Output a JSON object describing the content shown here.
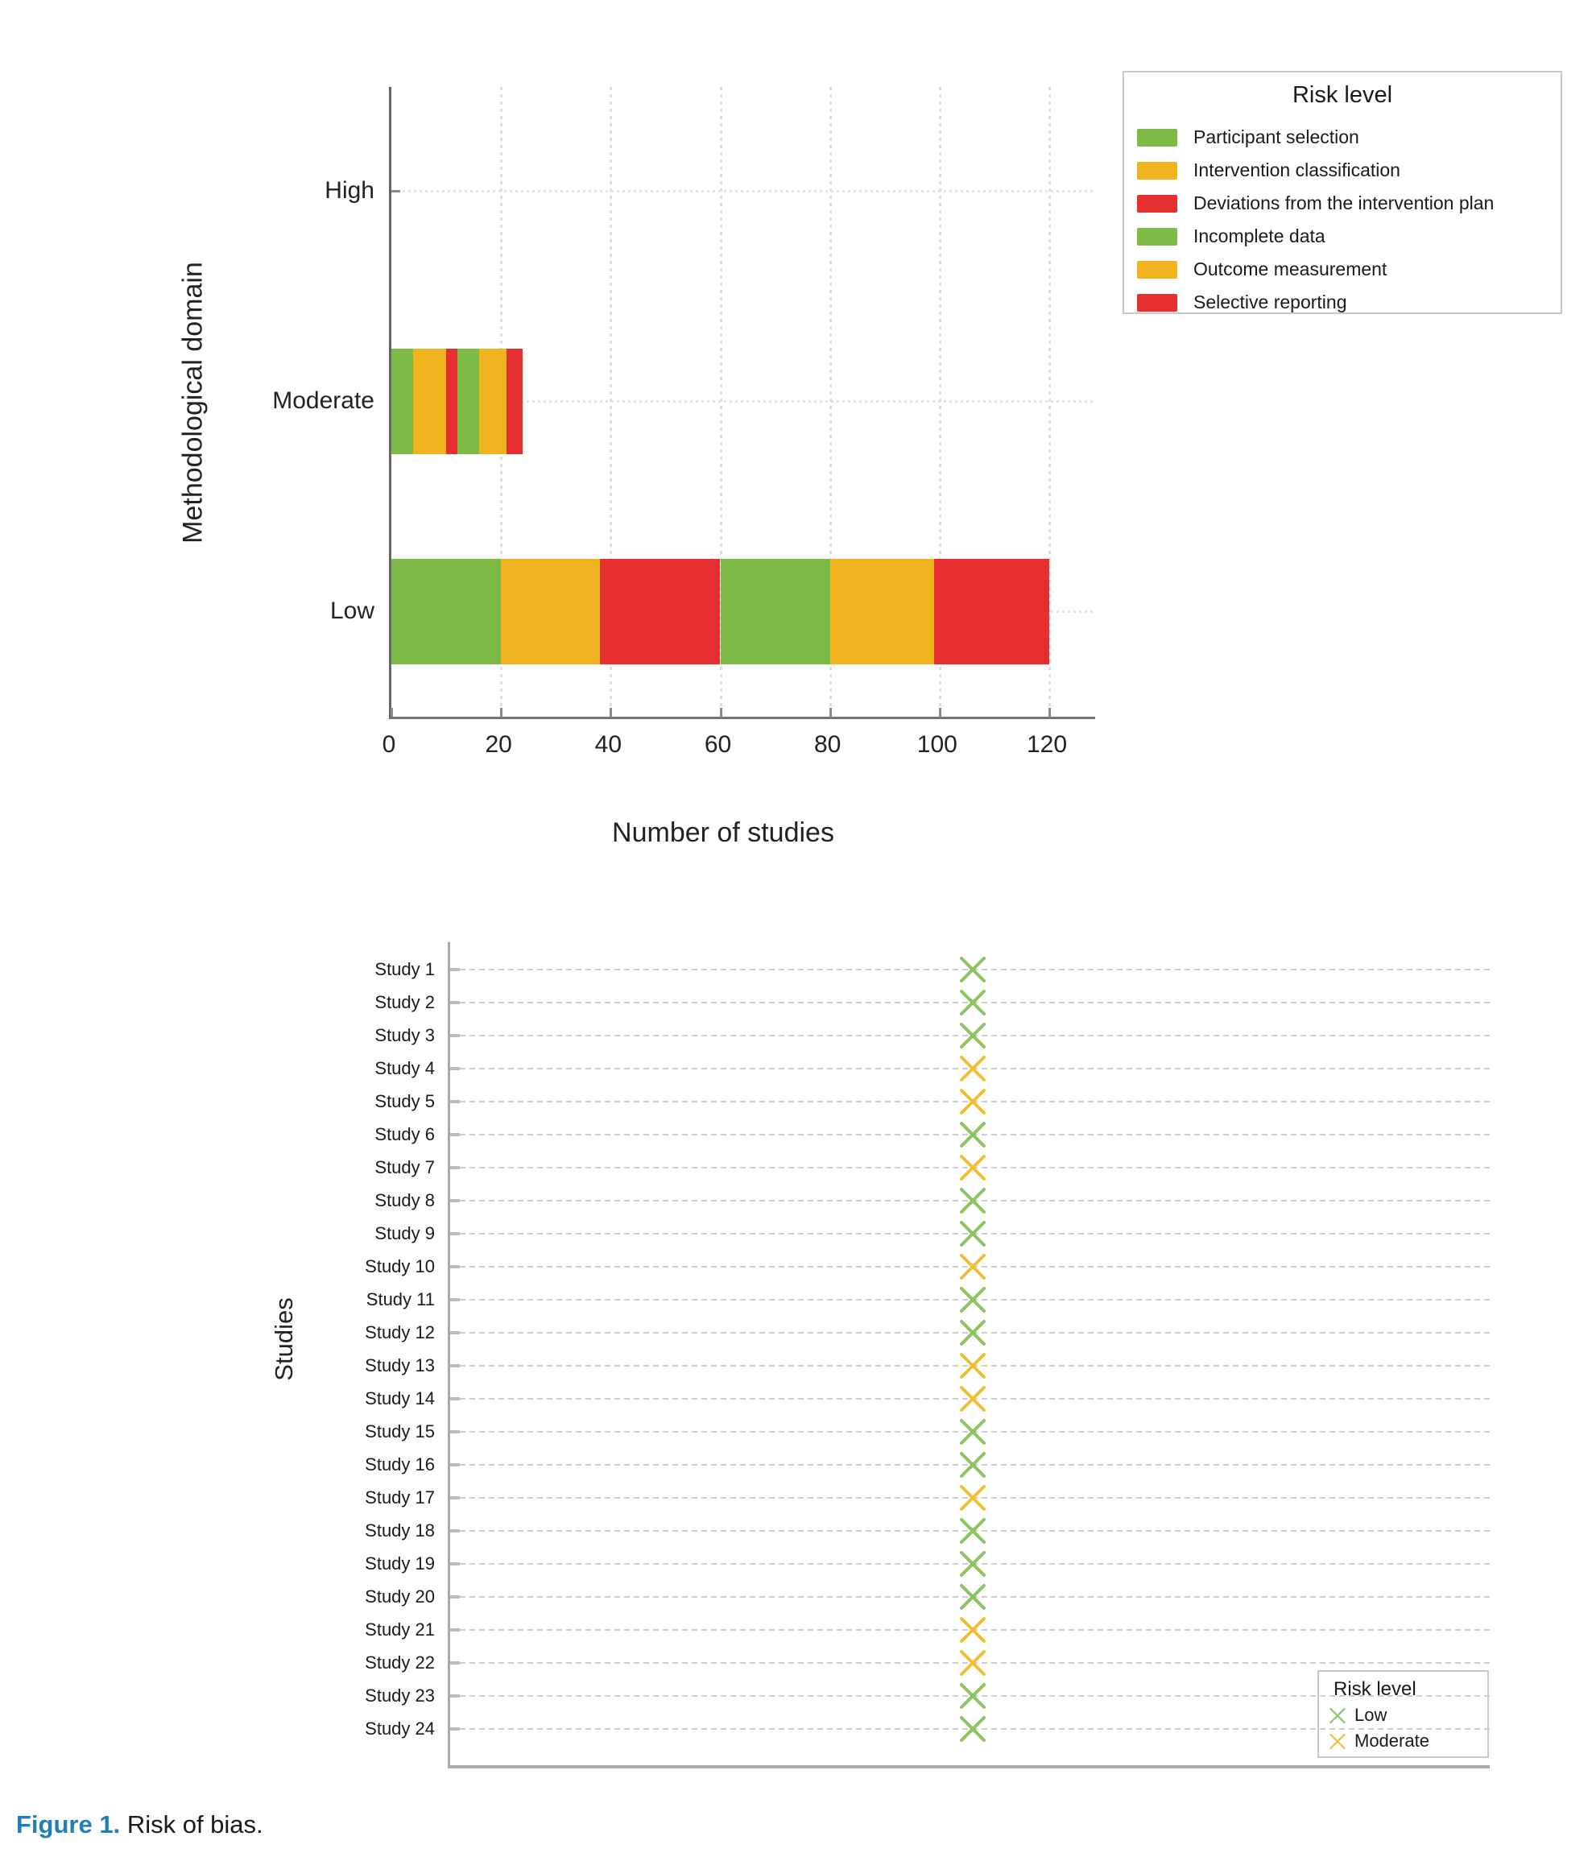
{
  "figure": {
    "label": "Figure 1.",
    "caption": " Risk of bias."
  },
  "colors": {
    "bar_green": "#7CBB46",
    "bar_orange": "#F2B41E",
    "bar_red": "#E62F2F",
    "marker_low_green": "#8CC45E",
    "marker_moderate_orange": "#F2BE33",
    "caption_blue": "#1e80b5"
  },
  "chart_data": [
    {
      "type": "bar",
      "orientation": "horizontal-stacked",
      "title": "",
      "xlabel": "Number of studies",
      "ylabel": "Methodological domain",
      "categories": [
        "High",
        "Moderate",
        "Low"
      ],
      "xlim": [
        0,
        120
      ],
      "xticks": [
        0,
        20,
        40,
        60,
        80,
        100,
        120
      ],
      "grid": "on",
      "legend": {
        "title": "Risk level",
        "position": "top-right"
      },
      "series": [
        {
          "name": "Participant selection",
          "color": "#7CBB46",
          "values": [
            0,
            4,
            20
          ]
        },
        {
          "name": "Intervention classification",
          "color": "#F2B41E",
          "values": [
            0,
            6,
            18
          ]
        },
        {
          "name": "Deviations from the intervention plan",
          "color": "#E62F2F",
          "values": [
            0,
            2,
            22
          ]
        },
        {
          "name": "Incomplete data",
          "color": "#7CBB46",
          "values": [
            0,
            4,
            20
          ]
        },
        {
          "name": "Outcome measurement",
          "color": "#F2B41E",
          "values": [
            0,
            5,
            19
          ]
        },
        {
          "name": "Selective reporting",
          "color": "#E62F2F",
          "values": [
            0,
            3,
            21
          ]
        }
      ]
    },
    {
      "type": "scatter",
      "marker": "x",
      "title": "",
      "xlabel": "",
      "ylabel": "Studies",
      "grid": "on",
      "legend": {
        "title": "Risk level",
        "position": "bottom-right",
        "entries": [
          {
            "label": "Low",
            "color": "#8CC45E"
          },
          {
            "label": "Moderate",
            "color": "#F2BE33"
          }
        ]
      },
      "studies": [
        {
          "label": "Study 1",
          "risk": "Low"
        },
        {
          "label": "Study 2",
          "risk": "Low"
        },
        {
          "label": "Study 3",
          "risk": "Low"
        },
        {
          "label": "Study 4",
          "risk": "Moderate"
        },
        {
          "label": "Study 5",
          "risk": "Moderate"
        },
        {
          "label": "Study 6",
          "risk": "Low"
        },
        {
          "label": "Study 7",
          "risk": "Moderate"
        },
        {
          "label": "Study 8",
          "risk": "Low"
        },
        {
          "label": "Study 9",
          "risk": "Low"
        },
        {
          "label": "Study 10",
          "risk": "Moderate"
        },
        {
          "label": "Study 11",
          "risk": "Low"
        },
        {
          "label": "Study 12",
          "risk": "Low"
        },
        {
          "label": "Study 13",
          "risk": "Moderate"
        },
        {
          "label": "Study 14",
          "risk": "Moderate"
        },
        {
          "label": "Study 15",
          "risk": "Low"
        },
        {
          "label": "Study 16",
          "risk": "Low"
        },
        {
          "label": "Study 17",
          "risk": "Moderate"
        },
        {
          "label": "Study 18",
          "risk": "Low"
        },
        {
          "label": "Study 19",
          "risk": "Low"
        },
        {
          "label": "Study 20",
          "risk": "Low"
        },
        {
          "label": "Study 21",
          "risk": "Moderate"
        },
        {
          "label": "Study 22",
          "risk": "Moderate"
        },
        {
          "label": "Study 23",
          "risk": "Low"
        },
        {
          "label": "Study 24",
          "risk": "Low"
        }
      ]
    }
  ]
}
